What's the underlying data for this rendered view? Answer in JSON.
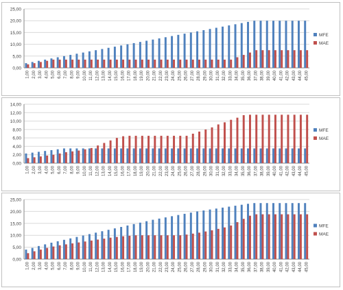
{
  "colors": {
    "mfe": "#4f81bd",
    "mae": "#c0504d",
    "grid": "#d9d9d9",
    "axis": "#868686"
  },
  "chart_data": [
    {
      "type": "bar",
      "categories": [
        "1,00",
        "2,00",
        "3,00",
        "4,00",
        "5,00",
        "6,00",
        "7,00",
        "8,00",
        "9,00",
        "10,00",
        "11,00",
        "12,00",
        "13,00",
        "14,00",
        "15,00",
        "16,00",
        "17,00",
        "18,00",
        "19,00",
        "20,00",
        "21,00",
        "22,00",
        "23,00",
        "24,00",
        "25,00",
        "26,00",
        "27,00",
        "28,00",
        "29,00",
        "30,00",
        "31,00",
        "32,00",
        "33,00",
        "34,00",
        "35,00",
        "36,00",
        "37,00",
        "38,00",
        "39,00",
        "40,00",
        "41,00",
        "42,00",
        "43,00",
        "44,00",
        "45,00"
      ],
      "yticks": [
        "0,00",
        "5,00",
        "10,00",
        "15,00",
        "20,00",
        "25,00"
      ],
      "ylim": [
        0,
        25
      ],
      "legend_position": "right",
      "series": [
        {
          "name": "MFE",
          "values": [
            2.0,
            2.5,
            3.0,
            3.5,
            4.0,
            4.5,
            5.0,
            5.5,
            6.0,
            6.5,
            7.0,
            7.5,
            8.0,
            8.5,
            9.0,
            9.5,
            10.0,
            10.5,
            11.0,
            11.5,
            12.0,
            12.5,
            13.0,
            13.5,
            14.0,
            14.5,
            15.0,
            15.5,
            16.0,
            16.5,
            17.0,
            17.5,
            18.0,
            18.5,
            19.0,
            19.5,
            20.0,
            20.0,
            20.0,
            20.0,
            20.0,
            20.0,
            20.0,
            20.0,
            20.0
          ]
        },
        {
          "name": "MAE",
          "values": [
            1.5,
            2.0,
            2.5,
            3.0,
            3.5,
            3.5,
            3.5,
            3.5,
            3.5,
            3.5,
            3.5,
            3.5,
            3.5,
            3.5,
            3.5,
            3.5,
            3.5,
            3.5,
            3.5,
            3.5,
            3.5,
            3.5,
            3.5,
            3.5,
            3.5,
            3.5,
            3.5,
            3.5,
            3.5,
            3.5,
            3.5,
            3.5,
            3.5,
            4.5,
            5.5,
            6.5,
            7.5,
            7.5,
            7.5,
            7.5,
            7.5,
            7.5,
            7.5,
            7.5,
            7.5
          ]
        }
      ]
    },
    {
      "type": "bar",
      "categories": [
        "1,00",
        "2,00",
        "3,00",
        "4,00",
        "5,00",
        "6,00",
        "7,00",
        "8,00",
        "9,00",
        "10,00",
        "11,00",
        "12,00",
        "13,00",
        "14,00",
        "15,00",
        "16,00",
        "17,00",
        "18,00",
        "19,00",
        "20,00",
        "21,00",
        "22,00",
        "23,00",
        "24,00",
        "25,00",
        "26,00",
        "27,00",
        "28,00",
        "29,00",
        "30,00",
        "31,00",
        "32,00",
        "33,00",
        "34,00",
        "35,00",
        "36,00",
        "37,00",
        "38,00",
        "39,00",
        "40,00",
        "41,00",
        "42,00",
        "43,00",
        "44,00",
        "45,00"
      ],
      "yticks": [
        "0,00",
        "2,00",
        "4,00",
        "6,00",
        "8,00",
        "10,00",
        "12,00",
        "14,00"
      ],
      "ylim": [
        0,
        14
      ],
      "legend_position": "right",
      "series": [
        {
          "name": "MFE",
          "values": [
            2.3,
            2.5,
            2.7,
            2.9,
            3.1,
            3.3,
            3.5,
            3.5,
            3.5,
            3.5,
            3.5,
            3.5,
            3.5,
            3.5,
            3.5,
            3.5,
            3.5,
            3.5,
            3.5,
            3.5,
            3.5,
            3.5,
            3.5,
            3.5,
            3.5,
            3.5,
            3.5,
            3.5,
            3.5,
            3.5,
            3.5,
            3.5,
            3.5,
            3.5,
            3.5,
            3.5,
            3.5,
            3.5,
            3.5,
            3.5,
            3.5,
            3.5,
            3.5,
            3.5,
            3.5
          ]
        },
        {
          "name": "MAE",
          "values": [
            1.2,
            1.4,
            1.6,
            1.8,
            2.0,
            2.3,
            2.6,
            2.8,
            3.0,
            3.3,
            3.6,
            4.2,
            4.8,
            5.4,
            6.0,
            6.4,
            6.5,
            6.5,
            6.5,
            6.5,
            6.5,
            6.5,
            6.5,
            6.5,
            6.5,
            6.5,
            7.0,
            7.5,
            8.0,
            8.5,
            9.2,
            9.7,
            10.3,
            10.8,
            11.4,
            11.5,
            11.5,
            11.5,
            11.5,
            11.5,
            11.5,
            11.5,
            11.5,
            11.5,
            11.5
          ]
        }
      ]
    },
    {
      "type": "bar",
      "categories": [
        "1,00",
        "2,00",
        "3,00",
        "4,00",
        "5,00",
        "6,00",
        "7,00",
        "8,00",
        "9,00",
        "10,00",
        "11,00",
        "12,00",
        "13,00",
        "14,00",
        "15,00",
        "16,00",
        "17,00",
        "18,00",
        "19,00",
        "20,00",
        "21,00",
        "22,00",
        "23,00",
        "24,00",
        "25,00",
        "26,00",
        "27,00",
        "28,00",
        "29,00",
        "30,00",
        "31,00",
        "32,00",
        "33,00",
        "34,00",
        "35,00",
        "36,00",
        "37,00",
        "38,00",
        "39,00",
        "40,00",
        "41,00",
        "42,00",
        "43,00",
        "44,00",
        "45,00"
      ],
      "yticks": [
        "0,00",
        "5,00",
        "10,00",
        "15,00",
        "20,00",
        "25,00"
      ],
      "ylim": [
        0,
        25
      ],
      "legend_position": "right",
      "series": [
        {
          "name": "MFE",
          "values": [
            4.0,
            4.7,
            5.5,
            6.2,
            6.9,
            7.5,
            8.1,
            8.7,
            9.3,
            9.9,
            10.5,
            11.1,
            11.7,
            12.3,
            12.9,
            13.5,
            14.1,
            14.7,
            15.3,
            15.9,
            16.5,
            17.0,
            17.5,
            18.0,
            18.5,
            19.0,
            19.5,
            20.0,
            20.4,
            20.8,
            21.2,
            21.6,
            22.0,
            22.4,
            22.8,
            23.2,
            23.5,
            23.5,
            23.5,
            23.5,
            23.5,
            23.5,
            23.5,
            23.5,
            23.5
          ]
        },
        {
          "name": "MAE",
          "values": [
            2.5,
            3.3,
            4.0,
            4.7,
            5.3,
            5.8,
            6.2,
            6.6,
            7.0,
            7.4,
            7.8,
            8.2,
            8.6,
            9.0,
            9.3,
            9.6,
            9.8,
            10.0,
            10.0,
            10.0,
            10.0,
            10.0,
            10.0,
            10.0,
            10.0,
            10.3,
            10.7,
            11.1,
            11.6,
            12.1,
            12.7,
            13.3,
            14.1,
            15.5,
            16.9,
            18.2,
            18.8,
            18.8,
            18.8,
            18.8,
            18.8,
            18.8,
            18.8,
            18.8,
            18.8
          ]
        }
      ]
    }
  ]
}
